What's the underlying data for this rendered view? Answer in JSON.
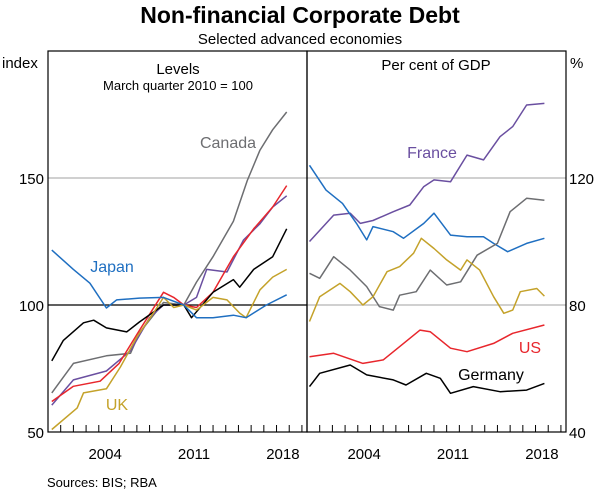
{
  "chart_data": {
    "type": "line",
    "title": "Non-financial Corporate Debt",
    "subtitle": "Selected advanced economies",
    "source": "Sources: BIS; RBA",
    "x_ticks": [
      "2004",
      "2011",
      "2018"
    ],
    "xlim": [
      2000,
      2020.4
    ],
    "panels": [
      {
        "title": "Levels",
        "subtitle": "March quarter 2010 = 100",
        "ylabel": "index",
        "ylim": [
          50,
          200
        ],
        "y_ticks": [
          "50",
          "100",
          "150"
        ],
        "reference_line": 100,
        "series": [
          {
            "name": "Canada",
            "color": "#6d6e71",
            "labeled": true,
            "points": [
              [
                2000.3,
                65.4
              ],
              [
                2002.0,
                77
              ],
              [
                2004.6,
                80
              ],
              [
                2006.5,
                81
              ],
              [
                2007.2,
                89
              ],
              [
                2009.1,
                101
              ],
              [
                2010.7,
                100
              ],
              [
                2011.7,
                109
              ],
              [
                2013.0,
                119
              ],
              [
                2014.6,
                133
              ],
              [
                2015.7,
                149
              ],
              [
                2016.7,
                161
              ],
              [
                2017.7,
                169
              ],
              [
                2018.8,
                176
              ]
            ]
          },
          {
            "name": "France",
            "color": "#6a4fa0",
            "labeled": false,
            "points": [
              [
                2000.3,
                60.6
              ],
              [
                2002.0,
                70.5
              ],
              [
                2004.6,
                74
              ],
              [
                2006.5,
                82
              ],
              [
                2008.0,
                95
              ],
              [
                2009.1,
                100
              ],
              [
                2010.7,
                100
              ],
              [
                2011.7,
                103
              ],
              [
                2012.5,
                114
              ],
              [
                2014.1,
                113
              ],
              [
                2015.4,
                125.6
              ],
              [
                2016.7,
                132
              ],
              [
                2017.7,
                138.6
              ],
              [
                2018.8,
                143
              ]
            ]
          },
          {
            "name": "US",
            "color": "#e8262c",
            "labeled": false,
            "points": [
              [
                2000.3,
                62
              ],
              [
                2002.0,
                68
              ],
              [
                2004.1,
                70
              ],
              [
                2005.6,
                77
              ],
              [
                2007.2,
                90
              ],
              [
                2009.1,
                105
              ],
              [
                2009.9,
                103
              ],
              [
                2010.7,
                100
              ],
              [
                2011.7,
                99
              ],
              [
                2013.0,
                105
              ],
              [
                2014.6,
                119
              ],
              [
                2016.2,
                130
              ],
              [
                2017.7,
                138.6
              ],
              [
                2018.8,
                147
              ]
            ]
          },
          {
            "name": "Germany",
            "color": "#000000",
            "labeled": false,
            "points": [
              [
                2000.3,
                78
              ],
              [
                2001.2,
                86
              ],
              [
                2002.8,
                93
              ],
              [
                2003.6,
                94
              ],
              [
                2004.6,
                91
              ],
              [
                2006.2,
                89.4
              ],
              [
                2007.2,
                93.3
              ],
              [
                2009.1,
                100
              ],
              [
                2010.7,
                100
              ],
              [
                2011.3,
                95
              ],
              [
                2013.0,
                105
              ],
              [
                2014.6,
                110
              ],
              [
                2015.1,
                107
              ],
              [
                2016.2,
                114
              ],
              [
                2017.7,
                119
              ],
              [
                2018.8,
                130
              ]
            ]
          },
          {
            "name": "UK",
            "color": "#c4a22a",
            "labeled": true,
            "points": [
              [
                2000.3,
                51
              ],
              [
                2002.3,
                59.5
              ],
              [
                2002.8,
                65.4
              ],
              [
                2004.6,
                67
              ],
              [
                2005.7,
                75.6
              ],
              [
                2007.0,
                87.4
              ],
              [
                2008.3,
                96.8
              ],
              [
                2009.1,
                103
              ],
              [
                2009.9,
                99
              ],
              [
                2010.7,
                100
              ],
              [
                2011.7,
                98
              ],
              [
                2013.0,
                103
              ],
              [
                2014.1,
                102
              ],
              [
                2015.1,
                96.8
              ],
              [
                2015.6,
                95
              ],
              [
                2016.7,
                106
              ],
              [
                2017.7,
                111
              ],
              [
                2018.8,
                114
              ]
            ]
          },
          {
            "name": "Japan",
            "color": "#1f6fc1",
            "labeled": true,
            "points": [
              [
                2000.3,
                121.6
              ],
              [
                2002.0,
                114
              ],
              [
                2003.3,
                108.6
              ],
              [
                2004.6,
                98.8
              ],
              [
                2005.4,
                102
              ],
              [
                2007.2,
                102.7
              ],
              [
                2009.1,
                103
              ],
              [
                2010.7,
                100
              ],
              [
                2011.7,
                95
              ],
              [
                2013.0,
                95
              ],
              [
                2014.6,
                96
              ],
              [
                2015.6,
                95
              ],
              [
                2017.2,
                100
              ],
              [
                2018.8,
                104
              ]
            ]
          }
        ]
      },
      {
        "title": "Per cent of GDP",
        "ylabel": "%",
        "ylim": [
          40,
          160
        ],
        "y_ticks": [
          "40",
          "80",
          "120"
        ],
        "series": [
          {
            "name": "France",
            "color": "#6a4fa0",
            "labeled": true,
            "points": [
              [
                2000.2,
                100
              ],
              [
                2002.1,
                108.3
              ],
              [
                2003.4,
                108.9
              ],
              [
                2004.2,
                105.7
              ],
              [
                2005.2,
                106.6
              ],
              [
                2006.8,
                109.4
              ],
              [
                2008.1,
                111.5
              ],
              [
                2009.2,
                117.3
              ],
              [
                2010.0,
                119.4
              ],
              [
                2011.3,
                118.8
              ],
              [
                2012.6,
                127.2
              ],
              [
                2013.9,
                125.7
              ],
              [
                2015.2,
                133
              ],
              [
                2016.2,
                136.2
              ],
              [
                2017.3,
                143
              ],
              [
                2018.7,
                143.5
              ]
            ]
          },
          {
            "name": "Japan",
            "color": "#1f6fc1",
            "labeled": false,
            "points": [
              [
                2000.2,
                124
              ],
              [
                2001.5,
                116.2
              ],
              [
                2002.8,
                112
              ],
              [
                2003.9,
                105.7
              ],
              [
                2004.7,
                100.5
              ],
              [
                2005.2,
                104.7
              ],
              [
                2006.8,
                103.1
              ],
              [
                2007.6,
                101
              ],
              [
                2009.2,
                105.7
              ],
              [
                2010.0,
                108.9
              ],
              [
                2011.3,
                102
              ],
              [
                2012.6,
                101.5
              ],
              [
                2013.9,
                101.5
              ],
              [
                2014.7,
                99.4
              ],
              [
                2015.8,
                96.8
              ],
              [
                2017.3,
                99.4
              ],
              [
                2018.7,
                101
              ]
            ]
          },
          {
            "name": "Canada",
            "color": "#6d6e71",
            "labeled": false,
            "points": [
              [
                2000.2,
                90
              ],
              [
                2001.0,
                88.4
              ],
              [
                2002.1,
                95.2
              ],
              [
                2003.4,
                91
              ],
              [
                2004.7,
                85.8
              ],
              [
                2005.7,
                79.5
              ],
              [
                2006.8,
                78.4
              ],
              [
                2007.3,
                83.1
              ],
              [
                2008.6,
                84.2
              ],
              [
                2009.7,
                91
              ],
              [
                2011.0,
                86.3
              ],
              [
                2012.1,
                87.3
              ],
              [
                2013.4,
                95.7
              ],
              [
                2015.0,
                99.4
              ],
              [
                2016.0,
                109.4
              ],
              [
                2017.3,
                113.6
              ],
              [
                2018.7,
                113
              ]
            ]
          },
          {
            "name": "UK",
            "color": "#c4a22a",
            "labeled": false,
            "points": [
              [
                2000.2,
                74.8
              ],
              [
                2001.0,
                82.6
              ],
              [
                2002.6,
                86.8
              ],
              [
                2003.4,
                84.2
              ],
              [
                2004.4,
                80
              ],
              [
                2005.2,
                82.6
              ],
              [
                2006.3,
                90.5
              ],
              [
                2007.3,
                92.1
              ],
              [
                2008.4,
                96.3
              ],
              [
                2009.0,
                101
              ],
              [
                2010.0,
                97.8
              ],
              [
                2011.0,
                94.2
              ],
              [
                2012.1,
                91
              ],
              [
                2012.6,
                94.2
              ],
              [
                2013.6,
                91
              ],
              [
                2014.7,
                82.6
              ],
              [
                2015.5,
                77.4
              ],
              [
                2016.2,
                78.4
              ],
              [
                2016.8,
                84.2
              ],
              [
                2018.1,
                85.2
              ],
              [
                2018.7,
                82.8
              ]
            ]
          },
          {
            "name": "US",
            "color": "#e8262c",
            "labeled": true,
            "points": [
              [
                2000.2,
                63.7
              ],
              [
                2002.1,
                64.8
              ],
              [
                2004.4,
                61.6
              ],
              [
                2006.0,
                62.7
              ],
              [
                2007.3,
                66.9
              ],
              [
                2008.9,
                72.1
              ],
              [
                2009.7,
                71.6
              ],
              [
                2011.3,
                66.4
              ],
              [
                2012.6,
                65.3
              ],
              [
                2014.7,
                67.9
              ],
              [
                2016.2,
                71.1
              ],
              [
                2018.7,
                73.7
              ]
            ]
          },
          {
            "name": "Germany",
            "color": "#000000",
            "labeled": true,
            "points": [
              [
                2000.2,
                54.3
              ],
              [
                2001.0,
                58.5
              ],
              [
                2003.4,
                61.1
              ],
              [
                2004.7,
                58
              ],
              [
                2006.8,
                56.4
              ],
              [
                2007.8,
                54.8
              ],
              [
                2009.4,
                58.5
              ],
              [
                2010.5,
                56.9
              ],
              [
                2011.3,
                52.2
              ],
              [
                2013.1,
                54.3
              ],
              [
                2015.2,
                52.7
              ],
              [
                2017.3,
                53.2
              ],
              [
                2018.7,
                55.3
              ]
            ]
          }
        ]
      }
    ]
  }
}
